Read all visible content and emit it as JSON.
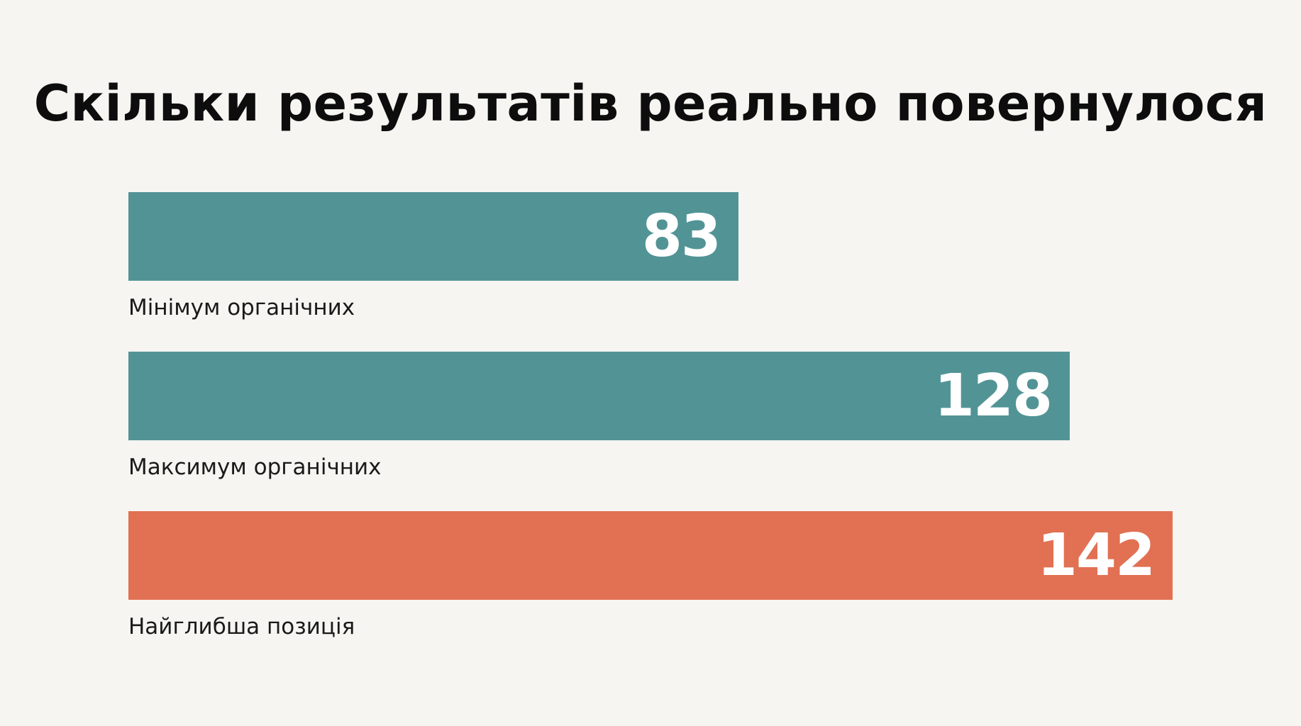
{
  "chart_data": {
    "type": "bar",
    "orientation": "horizontal",
    "title": "Скільки результатів реально повернулося",
    "categories": [
      "Мінімум органічних",
      "Максимум органічних",
      "Найглибша позиція"
    ],
    "values": [
      83,
      128,
      142
    ],
    "value_labels": [
      "83",
      "128",
      "142"
    ],
    "colors": [
      "#529496",
      "#529496",
      "#e27053"
    ],
    "xlim": [
      0,
      142
    ],
    "grid": false,
    "legend": "none"
  }
}
